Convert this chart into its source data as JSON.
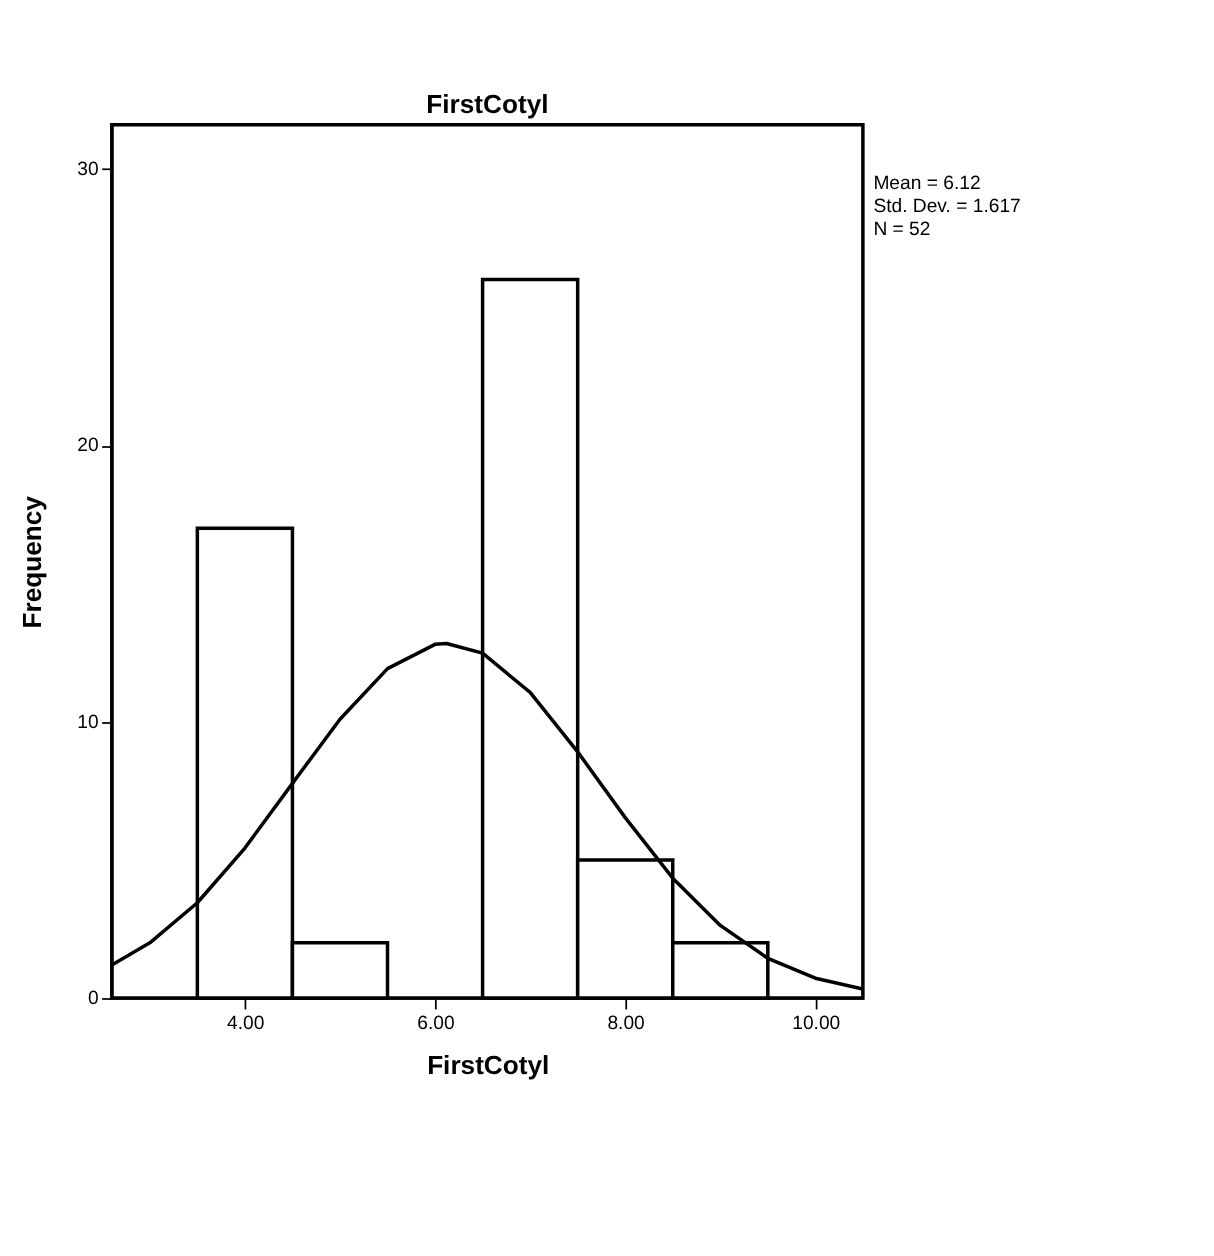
{
  "chart_data": {
    "type": "histogram",
    "title": "FirstCotyl",
    "xlabel": "FirstCotyl",
    "ylabel": "Frequency",
    "annotations": [
      "Mean = 6.12",
      "Std. Dev. = 1.617",
      "N = 52"
    ],
    "xlim": [
      2.6,
      10.5
    ],
    "ylim": [
      0,
      31.6
    ],
    "xticks": [
      {
        "value": 4,
        "label": "4.00"
      },
      {
        "value": 6,
        "label": "6.00"
      },
      {
        "value": 8,
        "label": "8.00"
      },
      {
        "value": 10,
        "label": "10.00"
      }
    ],
    "yticks": [
      0,
      10,
      20,
      30
    ],
    "grid": false,
    "series": [
      {
        "color": "#ffffff",
        "bins": [
          3.5,
          4.5,
          5.5,
          6.5,
          7.5,
          8.5,
          9.5
        ],
        "values": [
          17,
          2,
          0,
          26,
          5,
          2
        ]
      },
      {
        "type": "line",
        "color": "#000000",
        "marker": "none",
        "x": [
          2.6,
          3,
          3.5,
          4,
          4.5,
          5,
          5.5,
          6,
          6.12,
          6.5,
          7,
          7.5,
          8,
          8.5,
          9,
          9.5,
          10,
          10.5
        ],
        "values": [
          1.2,
          2.0,
          3.45,
          5.43,
          7.77,
          10.09,
          11.92,
          12.8,
          12.83,
          12.48,
          11.06,
          8.91,
          6.53,
          4.34,
          2.63,
          1.44,
          0.72,
          0.33
        ]
      }
    ]
  }
}
